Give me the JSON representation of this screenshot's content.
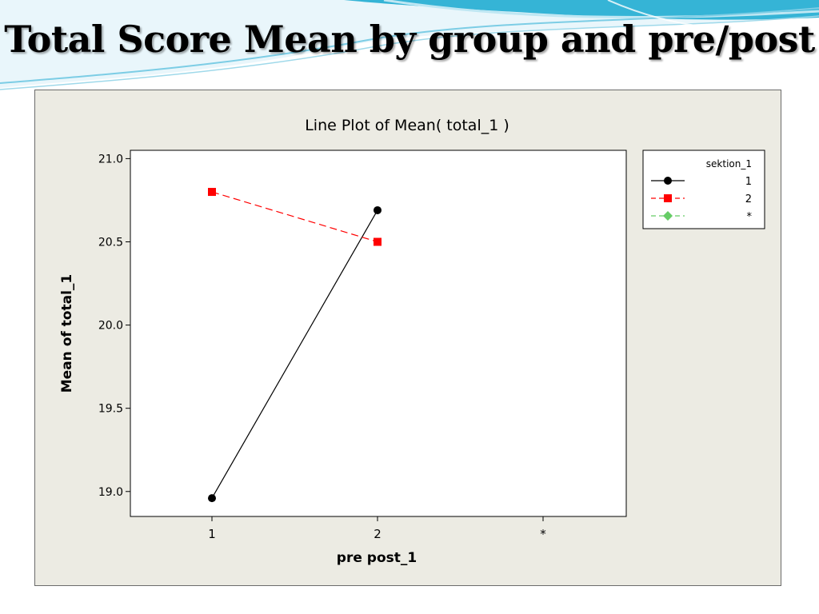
{
  "slide": {
    "title": "Total Score Mean by group and pre/post"
  },
  "colors": {
    "series_1": "#000000",
    "series_2": "#ff0000",
    "series_star": "#66cc66",
    "frame_bg": "#ecebe3",
    "deco_blue": "#35b4d6"
  },
  "chart_data": {
    "type": "line",
    "title": "Line Plot of Mean( total_1 )",
    "xlabel": "pre post_1",
    "ylabel": "Mean of total_1",
    "categories": [
      "1",
      "2",
      "*"
    ],
    "ylim": [
      18.85,
      21.05
    ],
    "yticks": [
      19.0,
      19.5,
      20.0,
      20.5,
      21.0
    ],
    "ytick_labels": [
      "19.0",
      "19.5",
      "20.0",
      "20.5",
      "21.0"
    ],
    "grid": false,
    "legend": {
      "title": "sektion_1",
      "placement": "right"
    },
    "series": [
      {
        "name": "1",
        "marker": "circle",
        "linestyle": "solid",
        "values": [
          18.96,
          20.69,
          null
        ]
      },
      {
        "name": "2",
        "marker": "square",
        "linestyle": "dashed",
        "values": [
          20.8,
          20.5,
          null
        ]
      },
      {
        "name": "*",
        "marker": "diamond",
        "linestyle": "dashed",
        "values": [
          null,
          null,
          null
        ]
      }
    ]
  }
}
